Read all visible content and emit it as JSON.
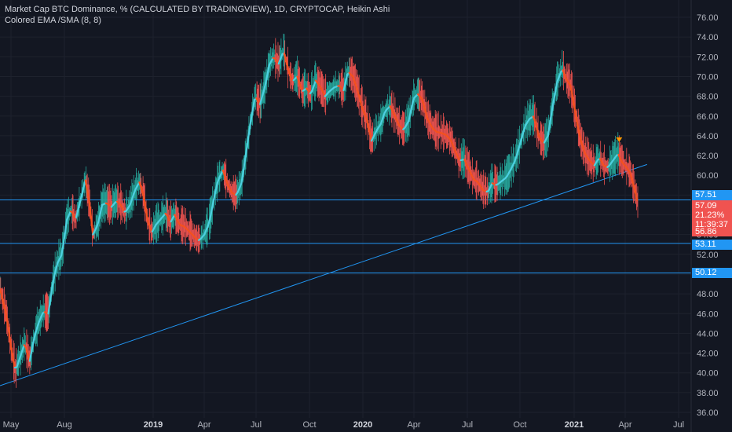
{
  "legend": {
    "line1": "Market Cap BTC Dominance, % (CALCULATED BY TRADINGVIEW), 1D, CRYPTOCAP, Heikin Ashi",
    "line2": "Colored EMA /SMA (8, 8)"
  },
  "colors": {
    "background": "#131722",
    "grid": "#1e222d",
    "bull": "#26a69a",
    "bear": "#ef5350",
    "ema_up": "#4dd0e1",
    "ema_down": "#f4511e",
    "trendline": "#2196f3",
    "hline": "#2196f3",
    "marker": "#ff9800"
  },
  "price_labels": {
    "l1": "57.51",
    "l2": "57.09",
    "l3": "21.23%",
    "l4": "11:39:37",
    "l5": "56.86",
    "l6": "53.11",
    "l7": "50.12"
  },
  "chart_data": {
    "type": "candlestick",
    "x_ticks": [
      {
        "label": "May",
        "bold": false
      },
      {
        "label": "Aug",
        "bold": false
      },
      {
        "label": "2019",
        "bold": true
      },
      {
        "label": "Apr",
        "bold": false
      },
      {
        "label": "Jul",
        "bold": false
      },
      {
        "label": "Oct",
        "bold": false
      },
      {
        "label": "2020",
        "bold": true
      },
      {
        "label": "Apr",
        "bold": false
      },
      {
        "label": "Jul",
        "bold": false
      },
      {
        "label": "Oct",
        "bold": false
      },
      {
        "label": "2021",
        "bold": true
      },
      {
        "label": "Apr",
        "bold": false
      },
      {
        "label": "Jul",
        "bold": false
      }
    ],
    "y_ticks": [
      "76.00",
      "74.00",
      "72.00",
      "70.00",
      "68.00",
      "66.00",
      "64.00",
      "62.00",
      "60.00",
      "58.00",
      "56.00",
      "54.00",
      "52.00",
      "50.00",
      "48.00",
      "46.00",
      "44.00",
      "42.00",
      "40.00",
      "38.00",
      "36.00"
    ],
    "ylim": [
      35.5,
      77.5
    ],
    "horizontal_lines": [
      57.51,
      53.11,
      50.12
    ],
    "trendline": [
      {
        "x": 0,
        "y": 38.7
      },
      {
        "x": 1045,
        "y": 61.1
      }
    ],
    "series": [
      {
        "t": 0,
        "v": 48.5
      },
      {
        "t": 5,
        "v": 47.2
      },
      {
        "t": 10,
        "v": 46.0
      },
      {
        "t": 18,
        "v": 42.5
      },
      {
        "t": 25,
        "v": 40.2
      },
      {
        "t": 32,
        "v": 41.5
      },
      {
        "t": 40,
        "v": 43.0
      },
      {
        "t": 48,
        "v": 41.2
      },
      {
        "t": 55,
        "v": 43.5
      },
      {
        "t": 62,
        "v": 45.0
      },
      {
        "t": 70,
        "v": 46.2
      },
      {
        "t": 78,
        "v": 46.0
      },
      {
        "t": 85,
        "v": 49.0
      },
      {
        "t": 92,
        "v": 51.0
      },
      {
        "t": 100,
        "v": 52.0
      },
      {
        "t": 108,
        "v": 55.5
      },
      {
        "t": 115,
        "v": 56.5
      },
      {
        "t": 122,
        "v": 55.5
      },
      {
        "t": 130,
        "v": 57.5
      },
      {
        "t": 138,
        "v": 59.5
      },
      {
        "t": 145,
        "v": 57.0
      },
      {
        "t": 150,
        "v": 54.0
      },
      {
        "t": 158,
        "v": 55.0
      },
      {
        "t": 165,
        "v": 57.0
      },
      {
        "t": 172,
        "v": 57.2
      },
      {
        "t": 180,
        "v": 56.8
      },
      {
        "t": 188,
        "v": 57.4
      },
      {
        "t": 195,
        "v": 57.0
      },
      {
        "t": 202,
        "v": 56.2
      },
      {
        "t": 210,
        "v": 57.0
      },
      {
        "t": 218,
        "v": 58.5
      },
      {
        "t": 225,
        "v": 59.3
      },
      {
        "t": 232,
        "v": 58.0
      },
      {
        "t": 238,
        "v": 55.5
      },
      {
        "t": 245,
        "v": 54.2
      },
      {
        "t": 252,
        "v": 55.0
      },
      {
        "t": 260,
        "v": 55.6
      },
      {
        "t": 268,
        "v": 56.2
      },
      {
        "t": 275,
        "v": 55.2
      },
      {
        "t": 282,
        "v": 56.0
      },
      {
        "t": 290,
        "v": 55.0
      },
      {
        "t": 298,
        "v": 54.8
      },
      {
        "t": 306,
        "v": 54.3
      },
      {
        "t": 315,
        "v": 53.7
      },
      {
        "t": 322,
        "v": 53.4
      },
      {
        "t": 330,
        "v": 54.0
      },
      {
        "t": 338,
        "v": 55.2
      },
      {
        "t": 345,
        "v": 57.5
      },
      {
        "t": 352,
        "v": 59.5
      },
      {
        "t": 360,
        "v": 60.5
      },
      {
        "t": 368,
        "v": 59.0
      },
      {
        "t": 375,
        "v": 58.2
      },
      {
        "t": 382,
        "v": 58.0
      },
      {
        "t": 390,
        "v": 59.2
      },
      {
        "t": 398,
        "v": 62.5
      },
      {
        "t": 405,
        "v": 65.5
      },
      {
        "t": 412,
        "v": 68.0
      },
      {
        "t": 420,
        "v": 67.2
      },
      {
        "t": 428,
        "v": 69.0
      },
      {
        "t": 435,
        "v": 71.2
      },
      {
        "t": 442,
        "v": 72.0
      },
      {
        "t": 450,
        "v": 71.3
      },
      {
        "t": 458,
        "v": 72.6
      },
      {
        "t": 465,
        "v": 70.8
      },
      {
        "t": 472,
        "v": 69.5
      },
      {
        "t": 480,
        "v": 70.0
      },
      {
        "t": 488,
        "v": 68.5
      },
      {
        "t": 495,
        "v": 68.8
      },
      {
        "t": 502,
        "v": 68.2
      },
      {
        "t": 510,
        "v": 69.6
      },
      {
        "t": 518,
        "v": 68.9
      },
      {
        "t": 525,
        "v": 68.0
      },
      {
        "t": 532,
        "v": 68.5
      },
      {
        "t": 540,
        "v": 68.9
      },
      {
        "t": 548,
        "v": 69.1
      },
      {
        "t": 555,
        "v": 68.6
      },
      {
        "t": 562,
        "v": 70.5
      },
      {
        "t": 570,
        "v": 70.0
      },
      {
        "t": 578,
        "v": 68.5
      },
      {
        "t": 585,
        "v": 66.8
      },
      {
        "t": 592,
        "v": 65.8
      },
      {
        "t": 600,
        "v": 63.5
      },
      {
        "t": 608,
        "v": 64.5
      },
      {
        "t": 615,
        "v": 65.2
      },
      {
        "t": 622,
        "v": 66.5
      },
      {
        "t": 630,
        "v": 67.0
      },
      {
        "t": 638,
        "v": 66.0
      },
      {
        "t": 645,
        "v": 65.0
      },
      {
        "t": 652,
        "v": 64.6
      },
      {
        "t": 660,
        "v": 65.5
      },
      {
        "t": 668,
        "v": 67.8
      },
      {
        "t": 675,
        "v": 68.2
      },
      {
        "t": 682,
        "v": 67.7
      },
      {
        "t": 690,
        "v": 65.8
      },
      {
        "t": 698,
        "v": 64.8
      },
      {
        "t": 705,
        "v": 64.4
      },
      {
        "t": 712,
        "v": 64.3
      },
      {
        "t": 720,
        "v": 64.1
      },
      {
        "t": 728,
        "v": 63.6
      },
      {
        "t": 735,
        "v": 62.5
      },
      {
        "t": 742,
        "v": 61.5
      },
      {
        "t": 750,
        "v": 61.6
      },
      {
        "t": 758,
        "v": 60.5
      },
      {
        "t": 765,
        "v": 59.6
      },
      {
        "t": 772,
        "v": 59.3
      },
      {
        "t": 780,
        "v": 58.5
      },
      {
        "t": 788,
        "v": 58.3
      },
      {
        "t": 795,
        "v": 59.2
      },
      {
        "t": 802,
        "v": 59.0
      },
      {
        "t": 810,
        "v": 59.4
      },
      {
        "t": 818,
        "v": 59.8
      },
      {
        "t": 825,
        "v": 60.6
      },
      {
        "t": 832,
        "v": 61.5
      },
      {
        "t": 840,
        "v": 63.2
      },
      {
        "t": 848,
        "v": 65.0
      },
      {
        "t": 855,
        "v": 65.7
      },
      {
        "t": 862,
        "v": 66.0
      },
      {
        "t": 870,
        "v": 64.0
      },
      {
        "t": 878,
        "v": 63.2
      },
      {
        "t": 885,
        "v": 64.0
      },
      {
        "t": 892,
        "v": 66.8
      },
      {
        "t": 900,
        "v": 69.5
      },
      {
        "t": 908,
        "v": 70.8
      },
      {
        "t": 915,
        "v": 69.7
      },
      {
        "t": 922,
        "v": 69.0
      },
      {
        "t": 930,
        "v": 66.0
      },
      {
        "t": 938,
        "v": 63.5
      },
      {
        "t": 945,
        "v": 62.2
      },
      {
        "t": 952,
        "v": 61.5
      },
      {
        "t": 960,
        "v": 61.0
      },
      {
        "t": 968,
        "v": 61.8
      },
      {
        "t": 975,
        "v": 61.0
      },
      {
        "t": 982,
        "v": 60.8
      },
      {
        "t": 990,
        "v": 61.5
      },
      {
        "t": 998,
        "v": 62.2
      },
      {
        "t": 1005,
        "v": 61.3
      },
      {
        "t": 1012,
        "v": 60.8
      },
      {
        "t": 1018,
        "v": 60.2
      },
      {
        "t": 1025,
        "v": 58.6
      },
      {
        "t": 1030,
        "v": 57.2
      }
    ],
    "marker": {
      "t": 1000,
      "v": 63.6
    }
  }
}
